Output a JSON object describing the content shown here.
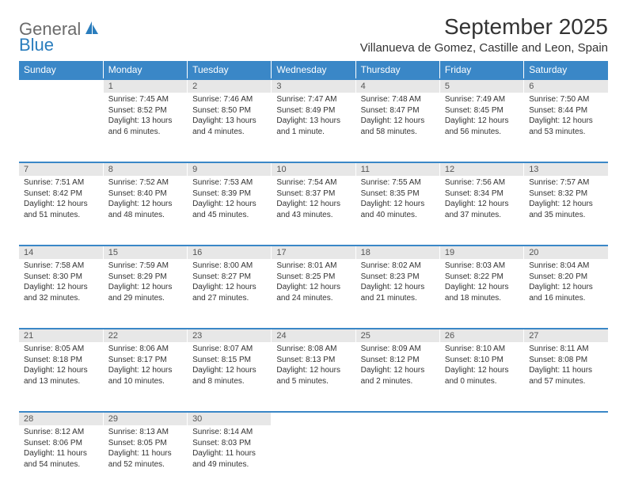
{
  "logo": {
    "text1": "General",
    "text2": "Blue"
  },
  "title": "September 2025",
  "location": "Villanueva de Gomez, Castille and Leon, Spain",
  "header_color": "#3a87c7",
  "daynum_bg": "#e7e7e7",
  "text_color": "#333333",
  "weekdays": [
    "Sunday",
    "Monday",
    "Tuesday",
    "Wednesday",
    "Thursday",
    "Friday",
    "Saturday"
  ],
  "weeks": [
    {
      "days": [
        {
          "n": "",
          "sr": "",
          "ss": "",
          "dl": ""
        },
        {
          "n": "1",
          "sr": "Sunrise: 7:45 AM",
          "ss": "Sunset: 8:52 PM",
          "dl": "Daylight: 13 hours and 6 minutes."
        },
        {
          "n": "2",
          "sr": "Sunrise: 7:46 AM",
          "ss": "Sunset: 8:50 PM",
          "dl": "Daylight: 13 hours and 4 minutes."
        },
        {
          "n": "3",
          "sr": "Sunrise: 7:47 AM",
          "ss": "Sunset: 8:49 PM",
          "dl": "Daylight: 13 hours and 1 minute."
        },
        {
          "n": "4",
          "sr": "Sunrise: 7:48 AM",
          "ss": "Sunset: 8:47 PM",
          "dl": "Daylight: 12 hours and 58 minutes."
        },
        {
          "n": "5",
          "sr": "Sunrise: 7:49 AM",
          "ss": "Sunset: 8:45 PM",
          "dl": "Daylight: 12 hours and 56 minutes."
        },
        {
          "n": "6",
          "sr": "Sunrise: 7:50 AM",
          "ss": "Sunset: 8:44 PM",
          "dl": "Daylight: 12 hours and 53 minutes."
        }
      ]
    },
    {
      "days": [
        {
          "n": "7",
          "sr": "Sunrise: 7:51 AM",
          "ss": "Sunset: 8:42 PM",
          "dl": "Daylight: 12 hours and 51 minutes."
        },
        {
          "n": "8",
          "sr": "Sunrise: 7:52 AM",
          "ss": "Sunset: 8:40 PM",
          "dl": "Daylight: 12 hours and 48 minutes."
        },
        {
          "n": "9",
          "sr": "Sunrise: 7:53 AM",
          "ss": "Sunset: 8:39 PM",
          "dl": "Daylight: 12 hours and 45 minutes."
        },
        {
          "n": "10",
          "sr": "Sunrise: 7:54 AM",
          "ss": "Sunset: 8:37 PM",
          "dl": "Daylight: 12 hours and 43 minutes."
        },
        {
          "n": "11",
          "sr": "Sunrise: 7:55 AM",
          "ss": "Sunset: 8:35 PM",
          "dl": "Daylight: 12 hours and 40 minutes."
        },
        {
          "n": "12",
          "sr": "Sunrise: 7:56 AM",
          "ss": "Sunset: 8:34 PM",
          "dl": "Daylight: 12 hours and 37 minutes."
        },
        {
          "n": "13",
          "sr": "Sunrise: 7:57 AM",
          "ss": "Sunset: 8:32 PM",
          "dl": "Daylight: 12 hours and 35 minutes."
        }
      ]
    },
    {
      "days": [
        {
          "n": "14",
          "sr": "Sunrise: 7:58 AM",
          "ss": "Sunset: 8:30 PM",
          "dl": "Daylight: 12 hours and 32 minutes."
        },
        {
          "n": "15",
          "sr": "Sunrise: 7:59 AM",
          "ss": "Sunset: 8:29 PM",
          "dl": "Daylight: 12 hours and 29 minutes."
        },
        {
          "n": "16",
          "sr": "Sunrise: 8:00 AM",
          "ss": "Sunset: 8:27 PM",
          "dl": "Daylight: 12 hours and 27 minutes."
        },
        {
          "n": "17",
          "sr": "Sunrise: 8:01 AM",
          "ss": "Sunset: 8:25 PM",
          "dl": "Daylight: 12 hours and 24 minutes."
        },
        {
          "n": "18",
          "sr": "Sunrise: 8:02 AM",
          "ss": "Sunset: 8:23 PM",
          "dl": "Daylight: 12 hours and 21 minutes."
        },
        {
          "n": "19",
          "sr": "Sunrise: 8:03 AM",
          "ss": "Sunset: 8:22 PM",
          "dl": "Daylight: 12 hours and 18 minutes."
        },
        {
          "n": "20",
          "sr": "Sunrise: 8:04 AM",
          "ss": "Sunset: 8:20 PM",
          "dl": "Daylight: 12 hours and 16 minutes."
        }
      ]
    },
    {
      "days": [
        {
          "n": "21",
          "sr": "Sunrise: 8:05 AM",
          "ss": "Sunset: 8:18 PM",
          "dl": "Daylight: 12 hours and 13 minutes."
        },
        {
          "n": "22",
          "sr": "Sunrise: 8:06 AM",
          "ss": "Sunset: 8:17 PM",
          "dl": "Daylight: 12 hours and 10 minutes."
        },
        {
          "n": "23",
          "sr": "Sunrise: 8:07 AM",
          "ss": "Sunset: 8:15 PM",
          "dl": "Daylight: 12 hours and 8 minutes."
        },
        {
          "n": "24",
          "sr": "Sunrise: 8:08 AM",
          "ss": "Sunset: 8:13 PM",
          "dl": "Daylight: 12 hours and 5 minutes."
        },
        {
          "n": "25",
          "sr": "Sunrise: 8:09 AM",
          "ss": "Sunset: 8:12 PM",
          "dl": "Daylight: 12 hours and 2 minutes."
        },
        {
          "n": "26",
          "sr": "Sunrise: 8:10 AM",
          "ss": "Sunset: 8:10 PM",
          "dl": "Daylight: 12 hours and 0 minutes."
        },
        {
          "n": "27",
          "sr": "Sunrise: 8:11 AM",
          "ss": "Sunset: 8:08 PM",
          "dl": "Daylight: 11 hours and 57 minutes."
        }
      ]
    },
    {
      "days": [
        {
          "n": "28",
          "sr": "Sunrise: 8:12 AM",
          "ss": "Sunset: 8:06 PM",
          "dl": "Daylight: 11 hours and 54 minutes."
        },
        {
          "n": "29",
          "sr": "Sunrise: 8:13 AM",
          "ss": "Sunset: 8:05 PM",
          "dl": "Daylight: 11 hours and 52 minutes."
        },
        {
          "n": "30",
          "sr": "Sunrise: 8:14 AM",
          "ss": "Sunset: 8:03 PM",
          "dl": "Daylight: 11 hours and 49 minutes."
        },
        {
          "n": "",
          "sr": "",
          "ss": "",
          "dl": ""
        },
        {
          "n": "",
          "sr": "",
          "ss": "",
          "dl": ""
        },
        {
          "n": "",
          "sr": "",
          "ss": "",
          "dl": ""
        },
        {
          "n": "",
          "sr": "",
          "ss": "",
          "dl": ""
        }
      ]
    }
  ]
}
